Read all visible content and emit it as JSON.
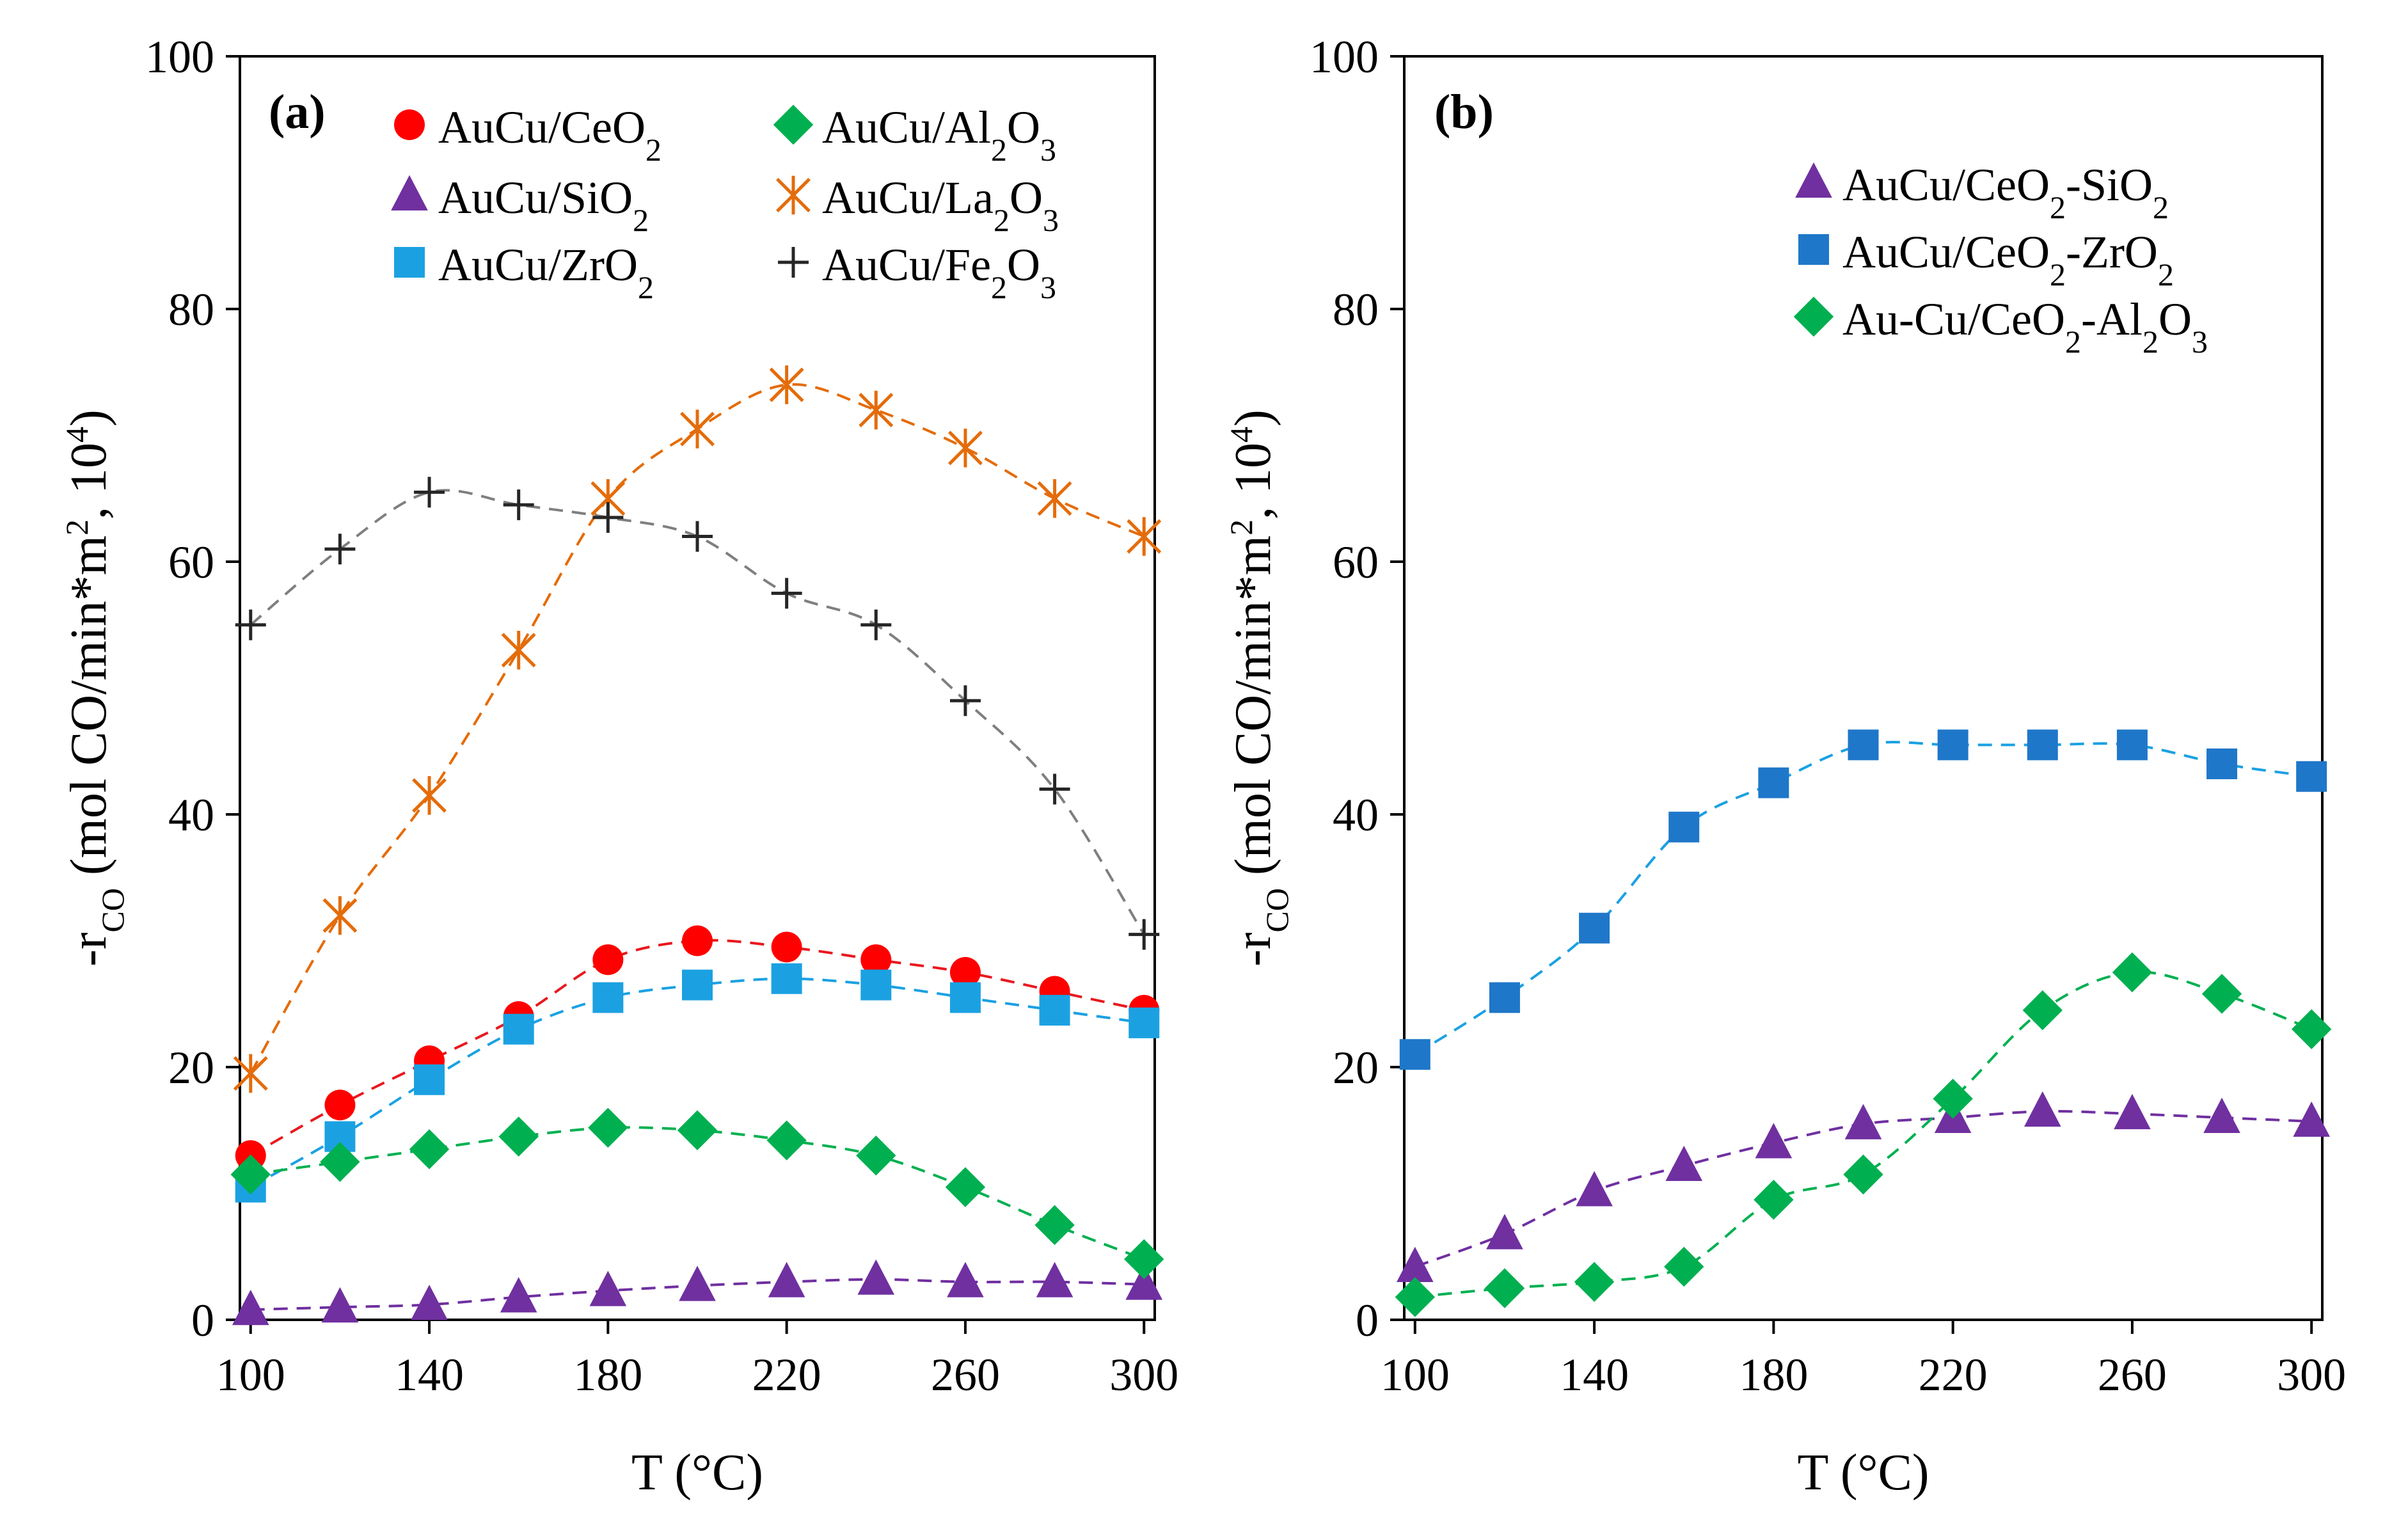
{
  "chart_data": [
    {
      "type": "line",
      "panel_label": "(a)",
      "xlabel": "T (°C)",
      "ylabel_parts": [
        "-r",
        "CO",
        " (mol CO/min*m",
        "2",
        ", 10",
        "4",
        ")"
      ],
      "xlim": [
        100,
        300
      ],
      "ylim": [
        0,
        100
      ],
      "x_ticks": [
        "100",
        "140",
        "180",
        "220",
        "260",
        "300"
      ],
      "y_ticks": [
        "0",
        "20",
        "40",
        "60",
        "80",
        "100"
      ],
      "grid": false,
      "legend_position": "top",
      "x": [
        100,
        120,
        140,
        160,
        180,
        200,
        220,
        240,
        260,
        280,
        300
      ],
      "series": [
        {
          "name_parts": [
            "AuCu/CeO",
            "2",
            ""
          ],
          "marker": "circle",
          "color": "#ff0000",
          "line_color": "#e8191f",
          "values": [
            13,
            17,
            20.5,
            24,
            28.5,
            30,
            29.5,
            28.5,
            27.5,
            26,
            24.5
          ]
        },
        {
          "name_parts": [
            "AuCu/SiO",
            "2",
            ""
          ],
          "marker": "triangle",
          "color": "#7030a0",
          "line_color": "#7030a0",
          "values": [
            0.8,
            1,
            1.2,
            1.8,
            2.3,
            2.7,
            3,
            3.2,
            3,
            3,
            2.8
          ]
        },
        {
          "name_parts": [
            "AuCu/ZrO",
            "2",
            ""
          ],
          "marker": "square",
          "color": "#1ba1e2",
          "line_color": "#1ba1e2",
          "values": [
            10.5,
            14.5,
            19,
            23,
            25.5,
            26.5,
            27,
            26.5,
            25.5,
            24.5,
            23.5
          ]
        },
        {
          "name_parts": [
            "AuCu/Al",
            "2",
            "O",
            "3",
            ""
          ],
          "marker": "diamond",
          "color": "#00b050",
          "line_color": "#00b050",
          "values": [
            11.5,
            12.5,
            13.5,
            14.5,
            15.2,
            15,
            14.2,
            13,
            10.5,
            7.5,
            4.8
          ]
        },
        {
          "name_parts": [
            "AuCu/La",
            "2",
            "O",
            "3",
            ""
          ],
          "marker": "asterisk",
          "color": "#e46c0a",
          "line_color": "#e46c0a",
          "values": [
            19.5,
            32,
            41.5,
            53,
            65,
            70.5,
            74,
            72,
            69,
            65,
            62
          ]
        },
        {
          "name_parts": [
            "AuCu/Fe",
            "2",
            "O",
            "3",
            ""
          ],
          "marker": "plus",
          "color": "#262626",
          "line_color": "#7f7f7f",
          "values": [
            55,
            61,
            65.5,
            64.5,
            63.5,
            62,
            57.5,
            55,
            49,
            42,
            30.5
          ]
        }
      ]
    },
    {
      "type": "line",
      "panel_label": "(b)",
      "xlabel": "T (°C)",
      "ylabel_parts": [
        "-r",
        "CO",
        " (mol CO/min*m",
        "2",
        ", 10",
        "4",
        ")"
      ],
      "xlim": [
        100,
        300
      ],
      "ylim": [
        0,
        100
      ],
      "x_ticks": [
        "100",
        "140",
        "180",
        "220",
        "260",
        "300"
      ],
      "y_ticks": [
        "0",
        "20",
        "40",
        "60",
        "80",
        "100"
      ],
      "grid": false,
      "legend_position": "top-right",
      "x": [
        100,
        120,
        140,
        160,
        180,
        200,
        220,
        240,
        260,
        280,
        300
      ],
      "series": [
        {
          "name_parts": [
            "AuCu/CeO",
            "2",
            "-SiO",
            "2",
            ""
          ],
          "marker": "triangle",
          "color": "#7030a0",
          "line_color": "#7030a0",
          "values": [
            4.2,
            6.8,
            10.2,
            12.2,
            14,
            15.5,
            16,
            16.5,
            16.3,
            16,
            15.7
          ]
        },
        {
          "name_parts": [
            "AuCu/CeO",
            "2",
            "-ZrO",
            "2",
            ""
          ],
          "marker": "square",
          "color": "#1f77c9",
          "line_color": "#1ba1e2",
          "values": [
            21,
            25.5,
            31,
            39,
            42.5,
            45.5,
            45.5,
            45.5,
            45.5,
            44,
            43
          ]
        },
        {
          "name_parts": [
            "Au-Cu/CeO",
            "2",
            "-Al",
            "2",
            "O",
            "3",
            ""
          ],
          "marker": "diamond",
          "color": "#00b050",
          "line_color": "#00b050",
          "values": [
            1.8,
            2.5,
            3,
            4.2,
            9.5,
            11.5,
            17.5,
            24.5,
            27.5,
            25.8,
            23
          ]
        }
      ]
    }
  ]
}
